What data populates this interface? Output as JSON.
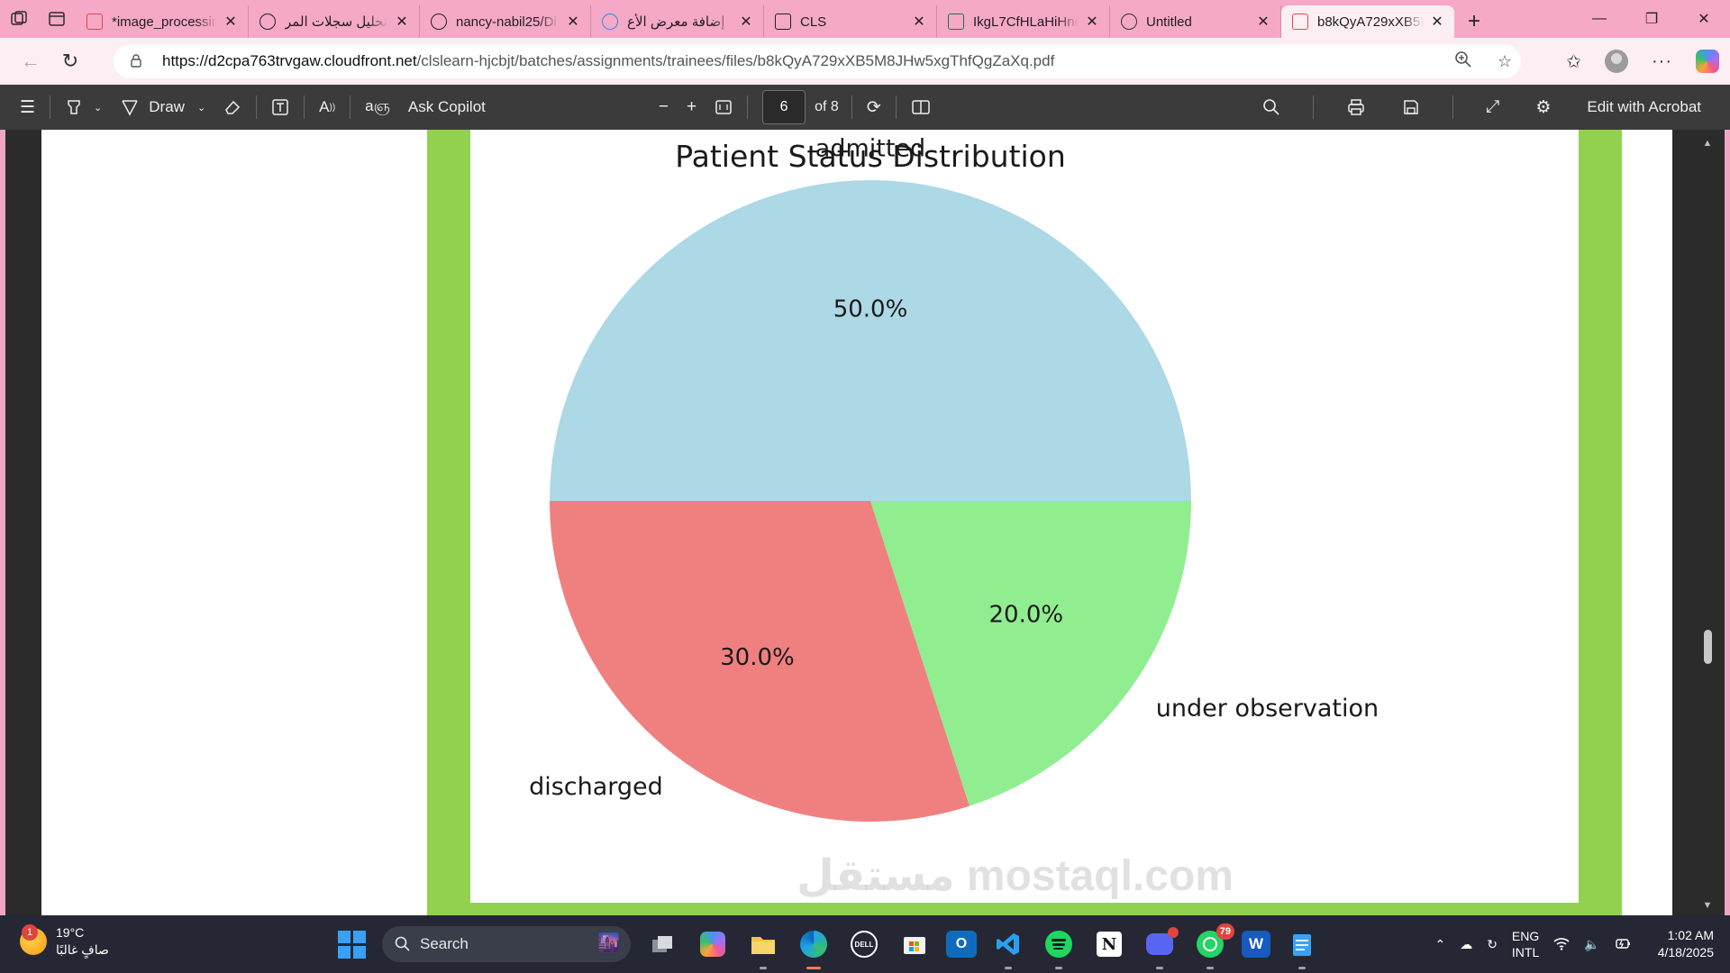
{
  "browser": {
    "tabs": [
      {
        "title": "*image_processin",
        "favicon": "pdf-icon",
        "color": "#d94b4b"
      },
      {
        "title": "تحليل سجلات المر",
        "favicon": "chatgpt-icon",
        "color": "#222222"
      },
      {
        "title": "nancy-nabil25/Di",
        "favicon": "github-icon",
        "color": "#222222"
      },
      {
        "title": "إضافة معرض الأع",
        "favicon": "mostaql-icon",
        "color": "#2b8fe0"
      },
      {
        "title": "CLS",
        "favicon": "cls-icon",
        "color": "#222222"
      },
      {
        "title": "IkgL7CfHLaHiHnc",
        "favicon": "excel-icon",
        "color": "#1d7044"
      },
      {
        "title": "Untitled",
        "favicon": "globe-icon",
        "color": "#333333"
      },
      {
        "title": "b8kQyA729xXB5I",
        "favicon": "pdf-icon",
        "color": "#d94b4b"
      }
    ],
    "url_host": "https://d2cpa763trvgaw.cloudfront.net",
    "url_path": "/clslearn-hjcbjt/batches/assignments/trainees/files/b8kQyA729xXB5M8JHw5xgThfQgZaXq.pdf"
  },
  "pdf_toolbar": {
    "draw_label": "Draw",
    "ask_copilot_label": "Ask Copilot",
    "page_current": "6",
    "page_total_label": "of 8",
    "edit_label": "Edit with Acrobat"
  },
  "chart_data": {
    "type": "pie",
    "title": "Patient Status Distribution",
    "labels": [
      "admitted",
      "discharged",
      "under observation"
    ],
    "values": [
      50.0,
      30.0,
      20.0
    ],
    "pct_labels": [
      "50.0%",
      "30.0%",
      "20.0%"
    ],
    "colors": [
      "#add8e6",
      "#f08080",
      "#90ee90"
    ],
    "start_angle_deg": 0
  },
  "watermark": "مستقل mostaql.com",
  "taskbar": {
    "temperature": "19°C",
    "weather_desc": "صافٍ غالبًا",
    "weather_badge": "1",
    "search_label": "Search",
    "whatsapp_badge": "79",
    "lang_primary": "ENG",
    "lang_secondary": "INTL",
    "time": "1:02 AM",
    "date": "4/18/2025"
  }
}
